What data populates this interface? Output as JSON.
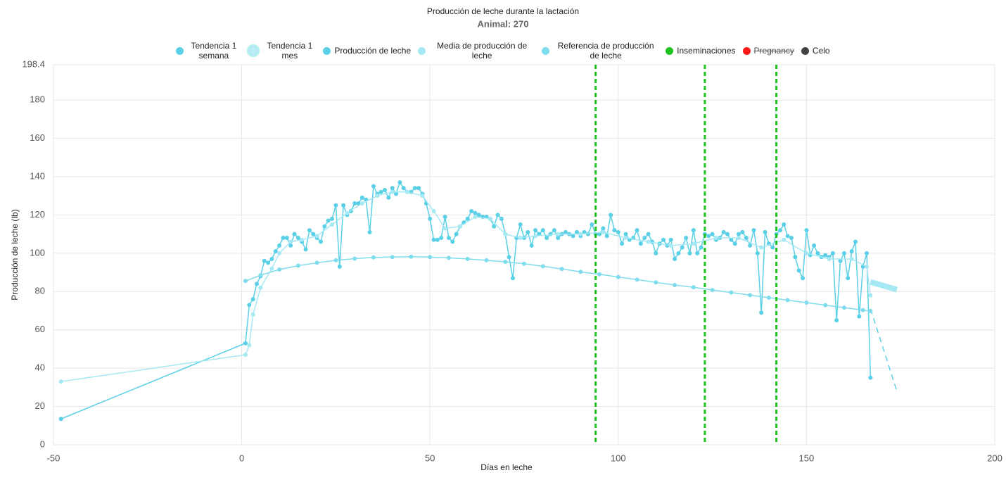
{
  "chart_data": {
    "type": "line",
    "title": "Producción de leche durante la lactación",
    "subtitle": "Animal: 270",
    "xlabel": "Días en leche",
    "ylabel": "Producción de leche (lb)",
    "xlim": [
      -50,
      200
    ],
    "ylim": [
      0,
      198.4
    ],
    "xticks": [
      -50,
      0,
      50,
      100,
      150,
      200
    ],
    "yticks": [
      0,
      20,
      40,
      60,
      80,
      100,
      120,
      140,
      160,
      180,
      198.4
    ],
    "grid": true,
    "series": [
      {
        "name": "Tendencia 1 semana",
        "color": "#5ad0e6",
        "dashed": true,
        "x": [
          167,
          174
        ],
        "values": [
          71,
          28
        ]
      },
      {
        "name": "Tendencia 1 mes",
        "color": "#a6e8f3",
        "line_width": 8,
        "x": [
          167,
          174
        ],
        "values": [
          85,
          81
        ]
      },
      {
        "name": "Producción de leche",
        "color": "#5ad0e6",
        "markers": true,
        "x": [
          -48,
          1,
          2,
          3,
          4,
          5,
          6,
          7,
          8,
          9,
          10,
          11,
          12,
          13,
          14,
          15,
          16,
          17,
          18,
          19,
          20,
          21,
          22,
          23,
          24,
          25,
          26,
          27,
          28,
          29,
          30,
          31,
          32,
          33,
          34,
          35,
          36,
          37,
          38,
          39,
          40,
          41,
          42,
          43,
          44,
          45,
          46,
          47,
          48,
          49,
          50,
          51,
          52,
          53,
          54,
          55,
          56,
          57,
          58,
          59,
          60,
          61,
          62,
          63,
          64,
          65,
          66,
          67,
          68,
          69,
          70,
          71,
          72,
          73,
          74,
          75,
          76,
          77,
          78,
          79,
          80,
          81,
          82,
          83,
          84,
          85,
          86,
          87,
          88,
          89,
          90,
          91,
          92,
          93,
          94,
          95,
          96,
          97,
          98,
          99,
          100,
          101,
          102,
          103,
          104,
          105,
          106,
          107,
          108,
          109,
          110,
          111,
          112,
          113,
          114,
          115,
          116,
          117,
          118,
          119,
          120,
          121,
          122,
          123,
          124,
          125,
          126,
          127,
          128,
          129,
          130,
          131,
          132,
          133,
          134,
          135,
          136,
          137,
          138,
          139,
          140,
          141,
          142,
          143,
          144,
          145,
          146,
          147,
          148,
          149,
          150,
          151,
          152,
          153,
          154,
          155,
          156,
          157,
          158,
          159,
          160,
          161,
          162,
          163,
          164,
          165,
          166,
          167
        ],
        "values": [
          13.5,
          53,
          73,
          76,
          84,
          88,
          96,
          95,
          97,
          101,
          104,
          108,
          108,
          104,
          110,
          108,
          106,
          102,
          112,
          110,
          108,
          106,
          114,
          117,
          118,
          125,
          93,
          125,
          120,
          122,
          126,
          126,
          129,
          128,
          111,
          135,
          131,
          132,
          133,
          129,
          134,
          131,
          137,
          134,
          132,
          132,
          134,
          134,
          131,
          126,
          118,
          107,
          107,
          108,
          119,
          108,
          106,
          110,
          114,
          116,
          118,
          122,
          121,
          120,
          119,
          119,
          118,
          114,
          120,
          118,
          110,
          98,
          87,
          108,
          115,
          108,
          111,
          104,
          112,
          110,
          112,
          108,
          110,
          112,
          108,
          110,
          111,
          110,
          109,
          111,
          109,
          111,
          110,
          115,
          110,
          110,
          113,
          109,
          120,
          112,
          111,
          105,
          110,
          107,
          108,
          112,
          105,
          108,
          110,
          106,
          100,
          105,
          107,
          104,
          107,
          97,
          100,
          103,
          108,
          100,
          112,
          100,
          103,
          110,
          109,
          110,
          107,
          108,
          111,
          110,
          107,
          105,
          110,
          111,
          108,
          104,
          112,
          100,
          69,
          111,
          105,
          103,
          110,
          112,
          115,
          109,
          108,
          98,
          91,
          87,
          112,
          99,
          104,
          100,
          98,
          99,
          98,
          100,
          65,
          96,
          100,
          87,
          101,
          106,
          67,
          93,
          100,
          35
        ]
      },
      {
        "name": "Media de producción de leche",
        "color": "#a6e8f3",
        "markers": true,
        "x": [
          -48,
          1,
          2,
          3,
          5,
          8,
          10,
          13,
          16,
          20,
          24,
          28,
          32,
          36,
          40,
          44,
          48,
          51,
          54,
          58,
          62,
          66,
          70,
          74,
          78,
          84,
          90,
          96,
          102,
          108,
          114,
          120,
          126,
          132,
          138,
          144,
          150,
          156,
          162,
          166,
          167
        ],
        "values": [
          33,
          47,
          52,
          68,
          82,
          92,
          100,
          106,
          107,
          109,
          115,
          121,
          126,
          130,
          132,
          132,
          130,
          122,
          113,
          114,
          119,
          118,
          110,
          108,
          109,
          110,
          110,
          111,
          108,
          106,
          104,
          105,
          108,
          108,
          103,
          107,
          100,
          97,
          97,
          93,
          78
        ]
      },
      {
        "name": "Referencia de producción de leche",
        "color": "#7fdcec",
        "markers": true,
        "x": [
          1,
          5,
          10,
          15,
          20,
          25,
          30,
          35,
          40,
          45,
          50,
          55,
          60,
          65,
          70,
          75,
          80,
          85,
          90,
          95,
          100,
          105,
          110,
          115,
          120,
          125,
          130,
          135,
          140,
          145,
          150,
          155,
          160,
          165,
          167
        ],
        "values": [
          85.5,
          88.5,
          91.5,
          93.5,
          95,
          96.3,
          97.2,
          97.8,
          98,
          98.2,
          98,
          97.6,
          97,
          96.3,
          95.5,
          94.5,
          93.2,
          91.8,
          90.3,
          89,
          87.6,
          86.2,
          84.8,
          83.4,
          82.2,
          80.8,
          79.5,
          78.1,
          76.8,
          75.5,
          74.2,
          72.9,
          71.6,
          70.3,
          69.8
        ]
      }
    ],
    "events": [
      {
        "name": "Inseminaciones",
        "color": "#1ec21e",
        "x": [
          94,
          123,
          142
        ]
      },
      {
        "name": "Pregnancy",
        "color": "#ff1a1a",
        "hidden": true,
        "x": []
      },
      {
        "name": "Celo",
        "color": "#444444",
        "x": []
      }
    ]
  }
}
